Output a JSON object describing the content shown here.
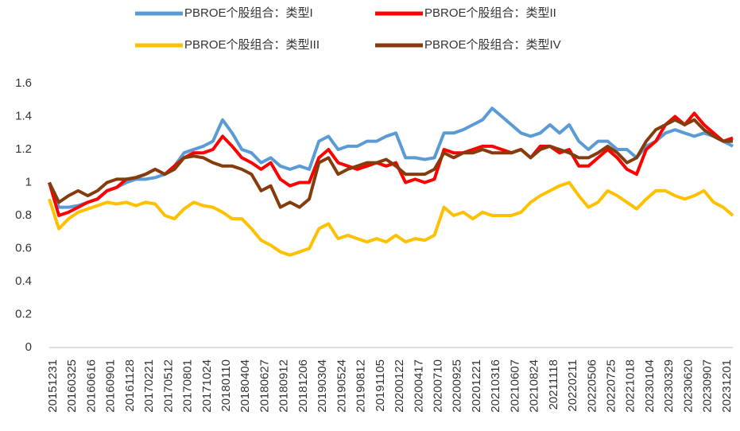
{
  "chart_data": {
    "type": "line",
    "categories": [
      "20151231",
      null,
      "20160325",
      null,
      "20160616",
      null,
      "20160901",
      null,
      "20161128",
      null,
      "20170221",
      null,
      "20170512",
      null,
      "20170801",
      null,
      "20171024",
      null,
      "20180110",
      null,
      "20180404",
      null,
      "20180627",
      null,
      "20180912",
      null,
      "20181206",
      null,
      "20190304",
      null,
      "20190524",
      null,
      "20190812",
      null,
      "20191105",
      null,
      "20200122",
      null,
      "20200417",
      null,
      "20200710",
      null,
      "20200925",
      null,
      "20201221",
      null,
      "20210316",
      null,
      "20210607",
      null,
      "20210824",
      null,
      "20211118",
      null,
      "20220211",
      null,
      "20220506",
      null,
      "20220725",
      null,
      "20221018",
      null,
      "20230104",
      null,
      "20230329",
      null,
      "20230620",
      null,
      "20230907",
      null,
      "20231201",
      null
    ],
    "series": [
      {
        "name": "PBROE个股组合：类型I",
        "color": "#5b9bd5",
        "values": [
          1.0,
          0.85,
          0.85,
          0.86,
          0.88,
          0.9,
          0.95,
          0.97,
          1.0,
          1.02,
          1.02,
          1.03,
          1.05,
          1.1,
          1.18,
          1.2,
          1.22,
          1.25,
          1.38,
          1.3,
          1.2,
          1.18,
          1.12,
          1.15,
          1.1,
          1.08,
          1.1,
          1.08,
          1.25,
          1.28,
          1.2,
          1.22,
          1.22,
          1.25,
          1.25,
          1.28,
          1.3,
          1.15,
          1.15,
          1.14,
          1.15,
          1.3,
          1.3,
          1.32,
          1.35,
          1.38,
          1.45,
          1.4,
          1.35,
          1.3,
          1.28,
          1.3,
          1.35,
          1.3,
          1.35,
          1.25,
          1.2,
          1.25,
          1.25,
          1.2,
          1.2,
          1.15,
          1.22,
          1.25,
          1.3,
          1.32,
          1.3,
          1.28,
          1.3,
          1.28,
          1.25,
          1.22
        ]
      },
      {
        "name": "PBROE个股组合：类型II",
        "color": "#ff0000",
        "values": [
          1.0,
          0.8,
          0.82,
          0.85,
          0.88,
          0.9,
          0.95,
          0.97,
          1.02,
          1.03,
          1.05,
          1.08,
          1.05,
          1.1,
          1.15,
          1.18,
          1.18,
          1.2,
          1.28,
          1.22,
          1.15,
          1.12,
          1.08,
          1.12,
          1.02,
          0.98,
          1.0,
          1.0,
          1.15,
          1.2,
          1.12,
          1.1,
          1.08,
          1.1,
          1.12,
          1.1,
          1.12,
          1.0,
          1.02,
          1.0,
          1.02,
          1.2,
          1.18,
          1.18,
          1.2,
          1.22,
          1.22,
          1.2,
          1.18,
          1.2,
          1.15,
          1.22,
          1.22,
          1.18,
          1.2,
          1.1,
          1.1,
          1.15,
          1.2,
          1.15,
          1.08,
          1.05,
          1.2,
          1.25,
          1.35,
          1.4,
          1.35,
          1.42,
          1.35,
          1.3,
          1.25,
          1.27
        ]
      },
      {
        "name": "PBROE个股组合：类型III",
        "color": "#ffc000",
        "values": [
          0.9,
          0.72,
          0.78,
          0.82,
          0.84,
          0.86,
          0.88,
          0.87,
          0.88,
          0.86,
          0.88,
          0.87,
          0.8,
          0.78,
          0.84,
          0.88,
          0.86,
          0.85,
          0.82,
          0.78,
          0.78,
          0.72,
          0.65,
          0.62,
          0.58,
          0.56,
          0.58,
          0.6,
          0.72,
          0.75,
          0.66,
          0.68,
          0.66,
          0.64,
          0.66,
          0.64,
          0.68,
          0.64,
          0.66,
          0.65,
          0.68,
          0.85,
          0.8,
          0.82,
          0.78,
          0.82,
          0.8,
          0.8,
          0.8,
          0.82,
          0.88,
          0.92,
          0.95,
          0.98,
          1.0,
          0.92,
          0.85,
          0.88,
          0.95,
          0.92,
          0.88,
          0.84,
          0.9,
          0.95,
          0.95,
          0.92,
          0.9,
          0.92,
          0.95,
          0.88,
          0.85,
          0.8
        ]
      },
      {
        "name": "PBROE个股组合：类型IV",
        "color": "#843c0c",
        "values": [
          1.0,
          0.88,
          0.92,
          0.95,
          0.92,
          0.95,
          1.0,
          1.02,
          1.02,
          1.03,
          1.05,
          1.08,
          1.05,
          1.08,
          1.15,
          1.16,
          1.15,
          1.12,
          1.1,
          1.1,
          1.08,
          1.05,
          0.95,
          0.98,
          0.85,
          0.88,
          0.85,
          0.9,
          1.12,
          1.15,
          1.05,
          1.08,
          1.1,
          1.12,
          1.12,
          1.14,
          1.1,
          1.05,
          1.05,
          1.05,
          1.08,
          1.18,
          1.15,
          1.18,
          1.18,
          1.2,
          1.18,
          1.18,
          1.18,
          1.2,
          1.15,
          1.2,
          1.22,
          1.2,
          1.18,
          1.15,
          1.15,
          1.18,
          1.22,
          1.18,
          1.12,
          1.15,
          1.25,
          1.32,
          1.35,
          1.38,
          1.35,
          1.38,
          1.32,
          1.28,
          1.25,
          1.25
        ]
      }
    ],
    "ylim": [
      0,
      1.6
    ],
    "yticks": [
      0,
      0.2,
      0.4,
      0.6,
      0.8,
      1,
      1.2,
      1.4,
      1.6
    ],
    "grid": false,
    "legend": "top"
  }
}
